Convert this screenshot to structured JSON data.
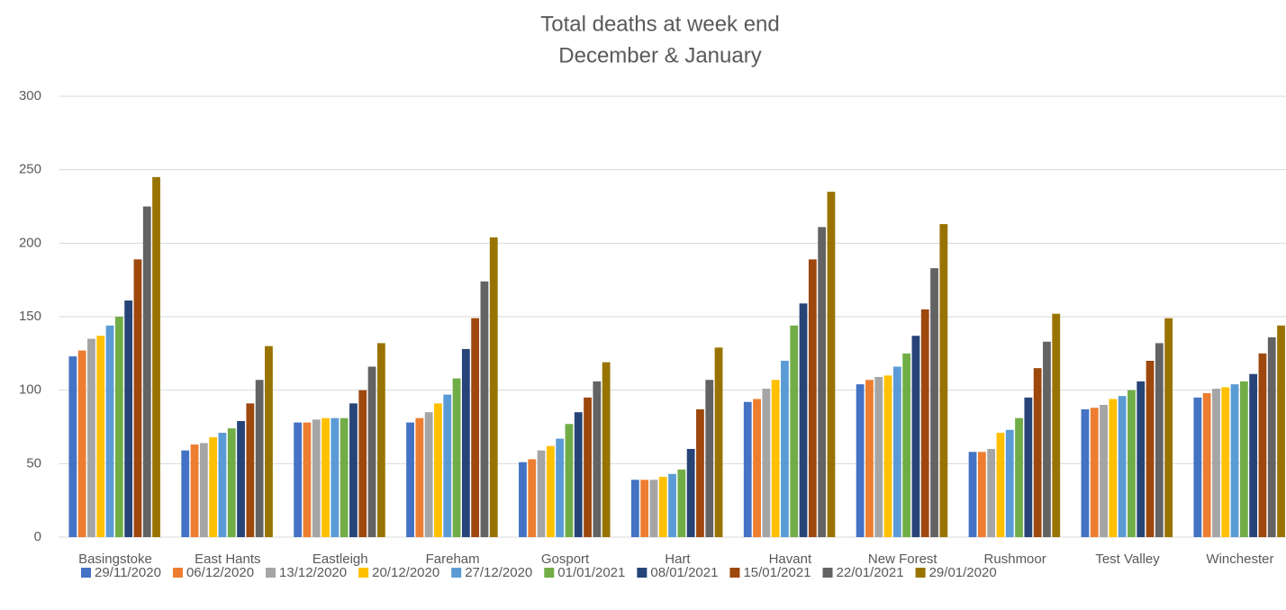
{
  "chart_data": {
    "type": "bar",
    "title": "Total deaths at week end",
    "subtitle": "December & January",
    "categories": [
      "Basingstoke",
      "East Hants",
      "Eastleigh",
      "Fareham",
      "Gosport",
      "Hart",
      "Havant",
      "New Forest",
      "Rushmoor",
      "Test Valley",
      "Winchester"
    ],
    "series": [
      {
        "name": "29/11/2020",
        "color": "#4472c4",
        "values": [
          123,
          59,
          78,
          78,
          51,
          39,
          92,
          104,
          58,
          87,
          95
        ]
      },
      {
        "name": "06/12/2020",
        "color": "#ed7d31",
        "values": [
          127,
          63,
          78,
          81,
          53,
          39,
          94,
          107,
          58,
          88,
          98
        ]
      },
      {
        "name": "13/12/2020",
        "color": "#a5a5a5",
        "values": [
          135,
          64,
          80,
          85,
          59,
          39,
          101,
          109,
          60,
          90,
          101
        ]
      },
      {
        "name": "20/12/2020",
        "color": "#ffc000",
        "values": [
          137,
          68,
          81,
          91,
          62,
          41,
          107,
          110,
          71,
          94,
          102
        ]
      },
      {
        "name": "27/12/2020",
        "color": "#5b9bd5",
        "values": [
          144,
          71,
          81,
          97,
          67,
          43,
          120,
          116,
          73,
          96,
          104
        ]
      },
      {
        "name": "01/01/2021",
        "color": "#70ad47",
        "values": [
          150,
          74,
          81,
          108,
          77,
          46,
          144,
          125,
          81,
          100,
          106
        ]
      },
      {
        "name": "08/01/2021",
        "color": "#264478",
        "values": [
          161,
          79,
          91,
          128,
          85,
          60,
          159,
          137,
          95,
          106,
          111
        ]
      },
      {
        "name": "15/01/2021",
        "color": "#9e480e",
        "values": [
          189,
          91,
          100,
          149,
          95,
          87,
          189,
          155,
          115,
          120,
          125
        ]
      },
      {
        "name": "22/01/2021",
        "color": "#636363",
        "values": [
          225,
          107,
          116,
          174,
          106,
          107,
          211,
          183,
          133,
          132,
          136
        ]
      },
      {
        "name": "29/01/2020",
        "color": "#997300",
        "values": [
          245,
          130,
          132,
          204,
          119,
          129,
          235,
          213,
          152,
          149,
          144
        ]
      }
    ],
    "ylim": [
      0,
      300
    ],
    "yticks": [
      0,
      50,
      100,
      150,
      200,
      250,
      300
    ],
    "grid": true,
    "legend": "bottom"
  }
}
